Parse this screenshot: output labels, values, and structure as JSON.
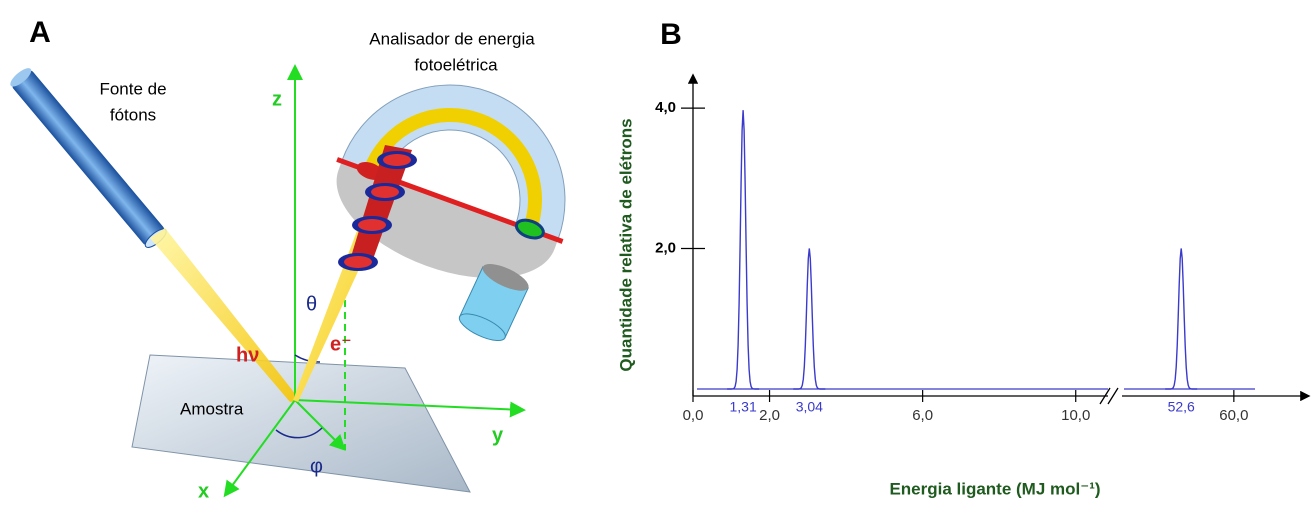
{
  "panel_a": {
    "letter": "A",
    "source_label": [
      "Fonte de",
      "fótons"
    ],
    "analyzer_label": [
      "Analisador de energia",
      "fotoelétrica"
    ],
    "axis_z": "z",
    "axis_y": "y",
    "axis_x": "x",
    "photon": "hν",
    "theta": "θ",
    "phi": "φ",
    "electron": "e⁻",
    "sample": "Amostra"
  },
  "chart_data": {
    "type": "peaks",
    "letter": "B",
    "x_label": "Energia ligante (MJ mol⁻¹)",
    "y_label": "Quantidade relativa de elétrons",
    "x": [
      1.31,
      3.04,
      52.6
    ],
    "x_labels": [
      "1,31",
      "3,04",
      "52,6"
    ],
    "values": [
      3.97,
      2.0,
      2.0
    ],
    "color": "#3a3acc",
    "x_segments": [
      {
        "xlim": [
          0,
          11
        ],
        "xticks": [
          {
            "value": 0,
            "label": "0,0"
          },
          {
            "value": 2,
            "label": "2,0"
          },
          {
            "value": 6,
            "label": "6,0"
          },
          {
            "value": 10,
            "label": "10,0"
          }
        ]
      },
      {
        "xlim": [
          44,
          70
        ],
        "xticks": [
          {
            "value": 60,
            "label": "60,0"
          }
        ]
      }
    ],
    "ylim": [
      -0.1,
      4.4
    ],
    "yticks": [
      {
        "value": 2,
        "label": "2,0"
      },
      {
        "value": 4,
        "label": "4,0"
      }
    ]
  }
}
